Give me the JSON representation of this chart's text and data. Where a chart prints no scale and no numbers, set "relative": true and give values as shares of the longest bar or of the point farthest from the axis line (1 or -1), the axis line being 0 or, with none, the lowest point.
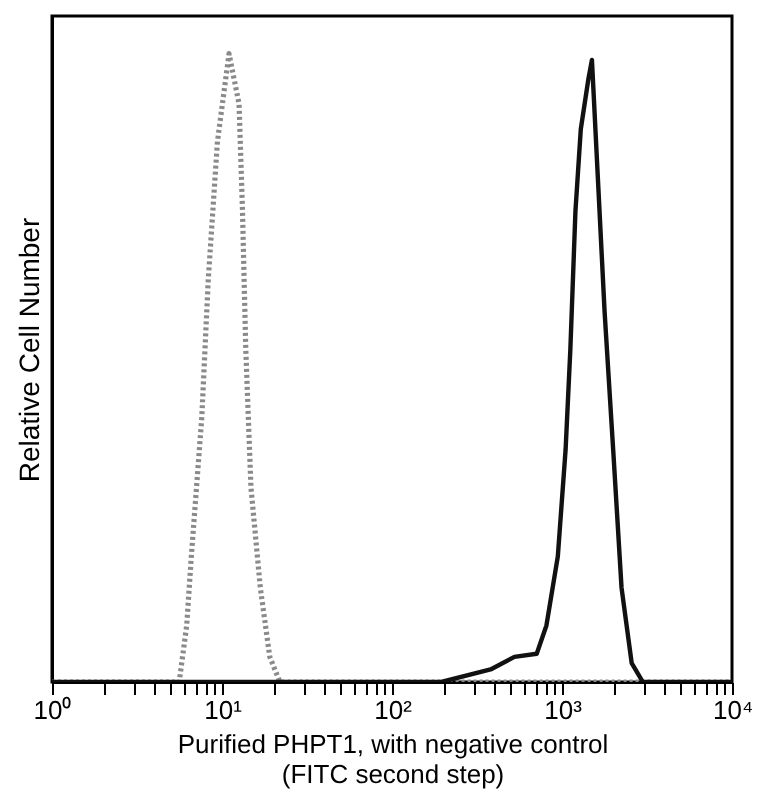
{
  "chart_data": {
    "type": "line",
    "relative": true,
    "log": "x",
    "xlabel": "Purified PHPT1, with negative control\n(FITC second step)",
    "ylabel": "Relative Cell Number",
    "xlim": [
      1,
      10000
    ],
    "xticks": [
      {
        "value": 1,
        "label": "10⁰"
      },
      {
        "value": 2,
        "label": null
      },
      {
        "value": 3,
        "label": null
      },
      {
        "value": 4,
        "label": null
      },
      {
        "value": 5,
        "label": null
      },
      {
        "value": 6,
        "label": null
      },
      {
        "value": 7,
        "label": null
      },
      {
        "value": 8,
        "label": null
      },
      {
        "value": 9,
        "label": null
      },
      {
        "value": 10,
        "label": "10¹"
      },
      {
        "value": 20,
        "label": null
      },
      {
        "value": 30,
        "label": null
      },
      {
        "value": 40,
        "label": null
      },
      {
        "value": 50,
        "label": null
      },
      {
        "value": 60,
        "label": null
      },
      {
        "value": 70,
        "label": null
      },
      {
        "value": 80,
        "label": null
      },
      {
        "value": 90,
        "label": null
      },
      {
        "value": 100,
        "label": "10²"
      },
      {
        "value": 200,
        "label": null
      },
      {
        "value": 300,
        "label": null
      },
      {
        "value": 400,
        "label": null
      },
      {
        "value": 500,
        "label": null
      },
      {
        "value": 600,
        "label": null
      },
      {
        "value": 700,
        "label": null
      },
      {
        "value": 800,
        "label": null
      },
      {
        "value": 900,
        "label": null
      },
      {
        "value": 1000,
        "label": "10³"
      },
      {
        "value": 2000,
        "label": null
      },
      {
        "value": 3000,
        "label": null
      },
      {
        "value": 4000,
        "label": null
      },
      {
        "value": 5000,
        "label": null
      },
      {
        "value": 6000,
        "label": null
      },
      {
        "value": 7000,
        "label": null
      },
      {
        "value": 8000,
        "label": null
      },
      {
        "value": 9000,
        "label": null
      },
      {
        "value": 10000,
        "label": "10⁴"
      }
    ],
    "grid": false,
    "legend": false,
    "marker": "none",
    "line_style": "solid",
    "series": [
      {
        "color": "#8a8a8a",
        "line_style": "dotted",
        "x": [
          1,
          5.6,
          6.2,
          6.6,
          7.6,
          8.3,
          9.4,
          11,
          12.6,
          13.2,
          13.8,
          14.8,
          16.8,
          19.1,
          21.9,
          10000
        ],
        "values": [
          0,
          0,
          0.09,
          0.2,
          0.42,
          0.64,
          0.86,
          1,
          0.92,
          0.75,
          0.53,
          0.31,
          0.15,
          0.04,
          0,
          0
        ]
      },
      {
        "color": "#111111",
        "x": [
          1,
          195,
          380,
          525,
          710,
          810,
          945,
          1050,
          1120,
          1200,
          1290,
          1430,
          1500,
          1620,
          1780,
          2000,
          2240,
          2570,
          2990,
          10000
        ],
        "values": [
          0,
          0,
          0.02,
          0.04,
          0.045,
          0.09,
          0.2,
          0.37,
          0.53,
          0.75,
          0.88,
          0.96,
          0.99,
          0.81,
          0.59,
          0.37,
          0.15,
          0.03,
          0,
          0
        ]
      }
    ]
  }
}
